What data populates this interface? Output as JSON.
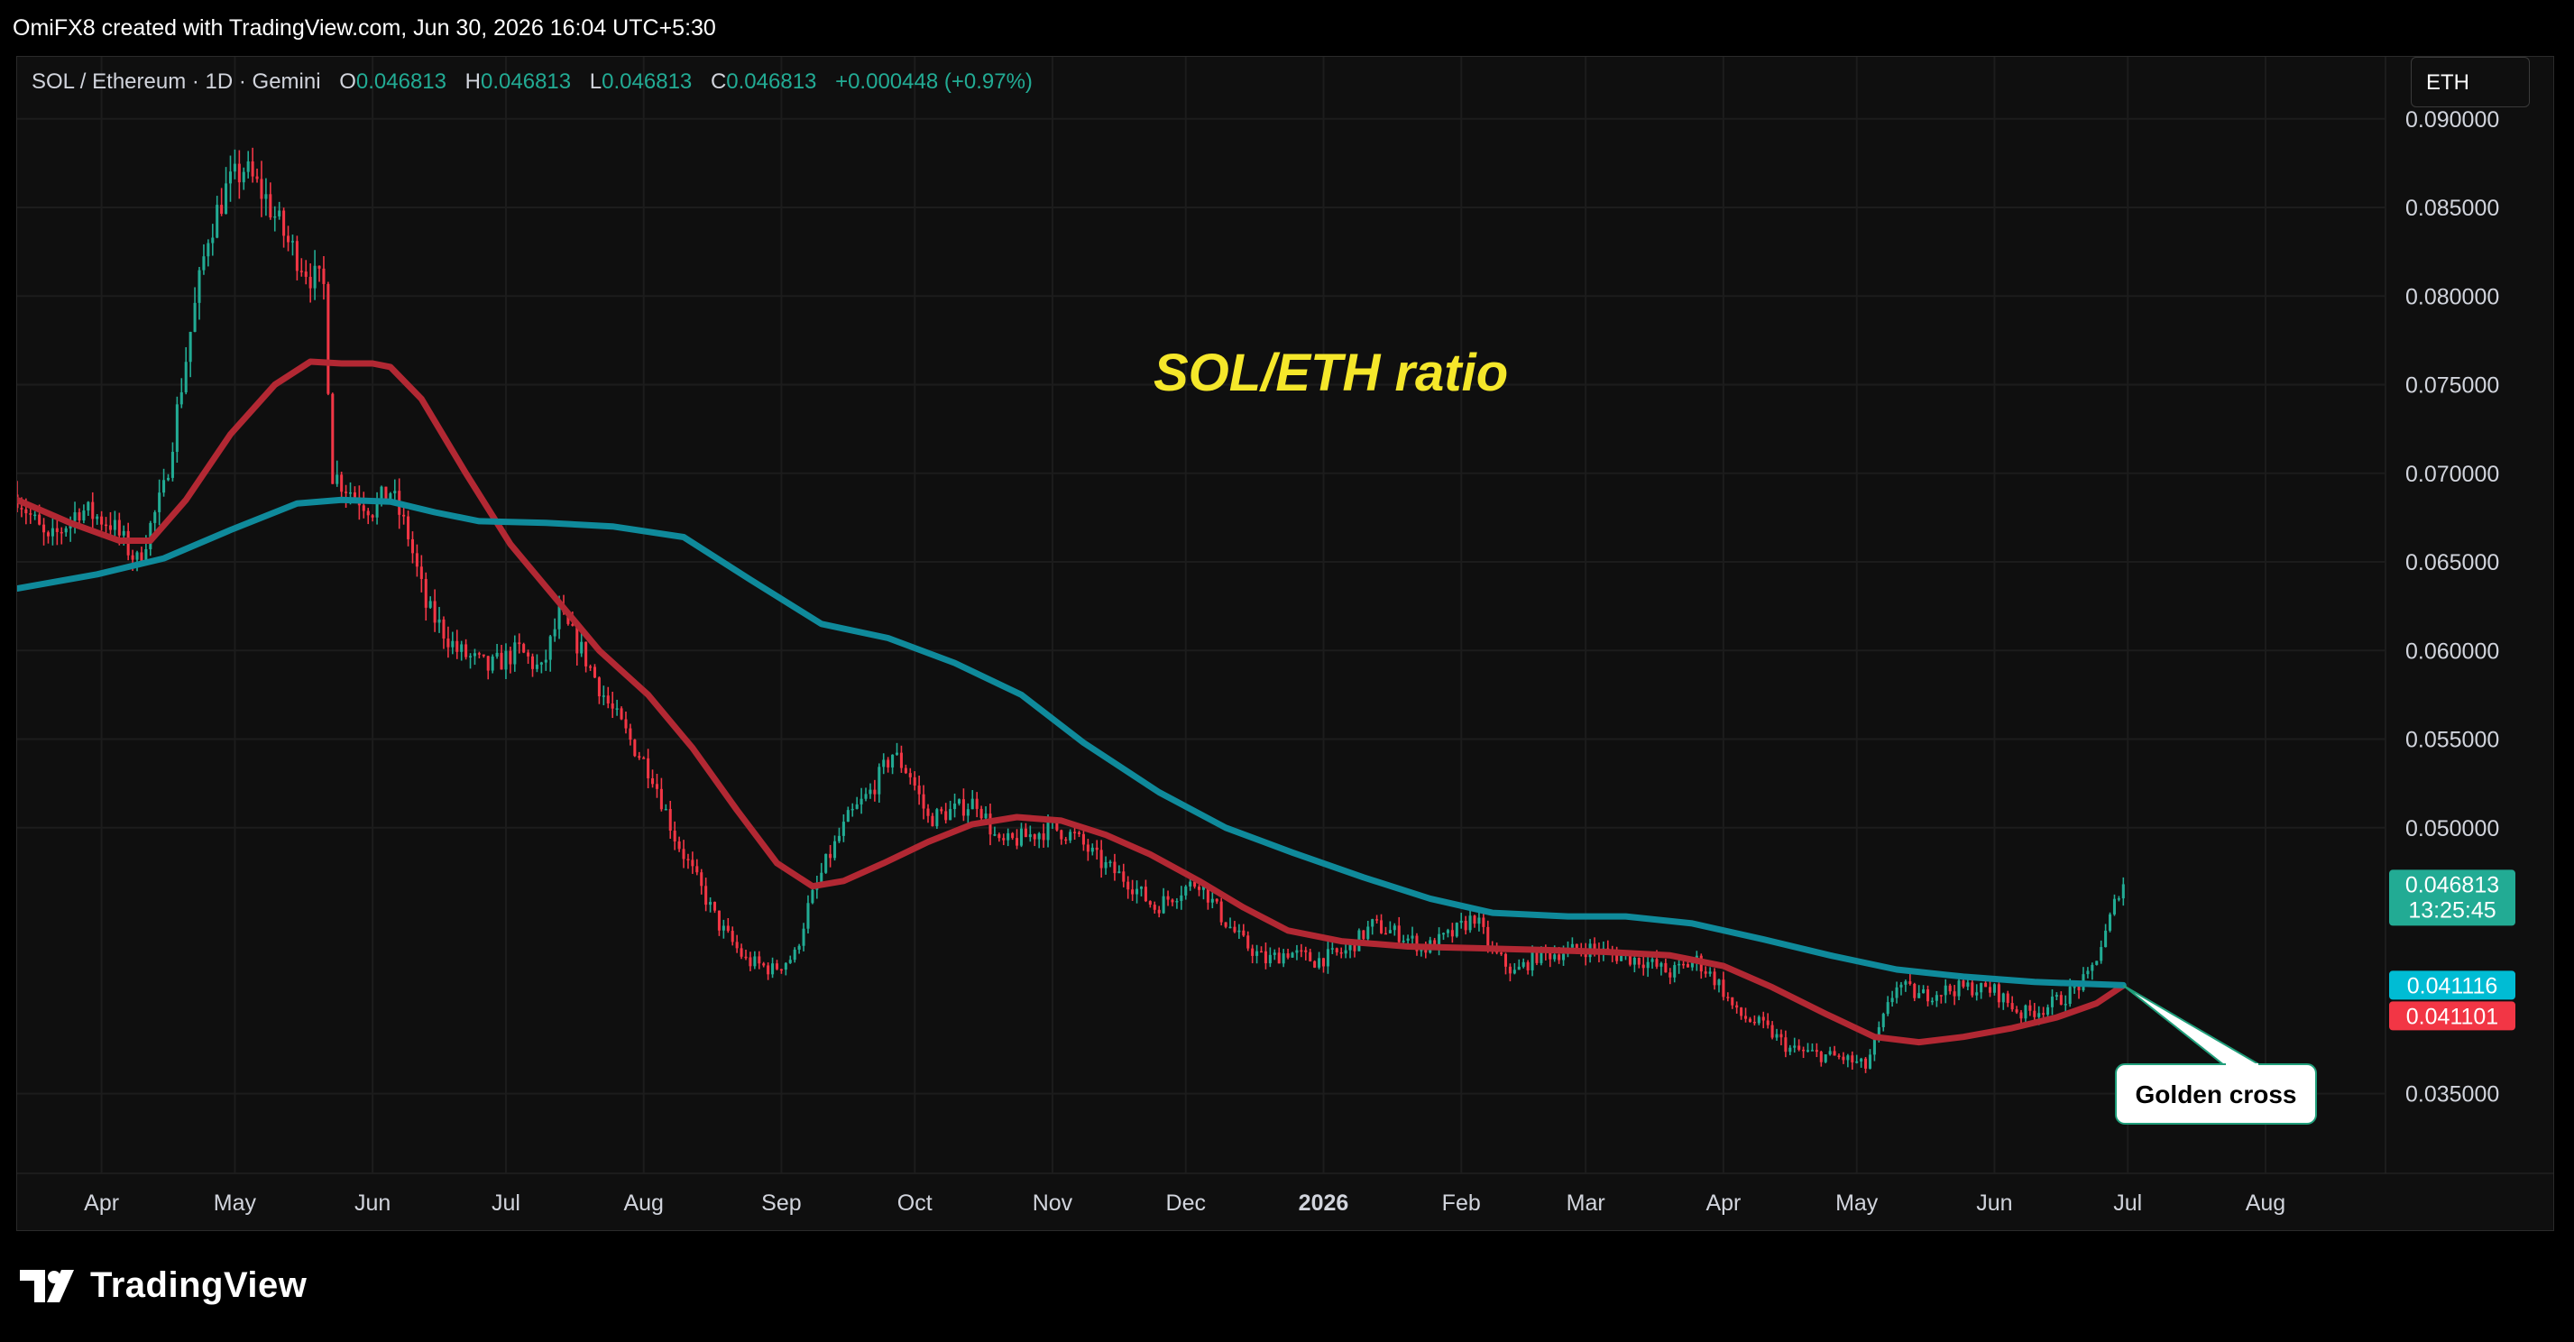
{
  "header": {
    "credit": "OmiFX8 created with TradingView.com, Jun 30, 2026 16:04 UTC+5:30"
  },
  "legend": {
    "symbol": "SOL / Ethereum · 1D · Gemini",
    "open_label": "O",
    "open": "0.046813",
    "high_label": "H",
    "high": "0.046813",
    "low_label": "L",
    "low": "0.046813",
    "close_label": "C",
    "close": "0.046813",
    "change": "+0.000448 (+0.97%)"
  },
  "currency_button": "ETH",
  "footer": {
    "brand": "TradingView"
  },
  "colors": {
    "up": "#22ab94",
    "down": "#f23645",
    "sma_fast": "#b22833",
    "sma_slow": "#0f8a9b",
    "title": "#f5e72a",
    "grid": "#1c1c1c",
    "background": "#0f0f0f"
  },
  "chart_data": {
    "type": "candlestick",
    "title": "SOL/ETH ratio",
    "ylim": [
      0.0305,
      0.0935
    ],
    "y_ticks": [
      "0.090000",
      "0.085000",
      "0.080000",
      "0.075000",
      "0.070000",
      "0.065000",
      "0.060000",
      "0.055000",
      "0.050000",
      "0.035000"
    ],
    "x_ticks": [
      {
        "label": "Apr",
        "date": "2025-04-01"
      },
      {
        "label": "May",
        "date": "2025-05-01"
      },
      {
        "label": "Jun",
        "date": "2025-06-01"
      },
      {
        "label": "Jul",
        "date": "2025-07-01"
      },
      {
        "label": "Aug",
        "date": "2025-08-01"
      },
      {
        "label": "Sep",
        "date": "2025-09-01"
      },
      {
        "label": "Oct",
        "date": "2025-10-01"
      },
      {
        "label": "Nov",
        "date": "2025-11-01"
      },
      {
        "label": "Dec",
        "date": "2025-12-01"
      },
      {
        "label": "2026",
        "date": "2026-01-01",
        "bold": true
      },
      {
        "label": "Feb",
        "date": "2026-02-01"
      },
      {
        "label": "Mar",
        "date": "2026-03-01"
      },
      {
        "label": "Apr",
        "date": "2026-04-01"
      },
      {
        "label": "May",
        "date": "2026-05-01"
      },
      {
        "label": "Jun",
        "date": "2026-06-01"
      },
      {
        "label": "Jul",
        "date": "2026-07-01"
      },
      {
        "label": "Aug",
        "date": "2026-08-01"
      }
    ],
    "x_range": [
      "2025-03-13",
      "2026-08-28"
    ],
    "price_path": [
      [
        "2025-03-13",
        0.0688
      ],
      [
        "2025-03-20",
        0.066
      ],
      [
        "2025-03-27",
        0.068
      ],
      [
        "2025-04-03",
        0.0672
      ],
      [
        "2025-04-09",
        0.065
      ],
      [
        "2025-04-15",
        0.069
      ],
      [
        "2025-04-21",
        0.078
      ],
      [
        "2025-04-25",
        0.0835
      ],
      [
        "2025-04-29",
        0.086
      ],
      [
        "2025-05-03",
        0.0872
      ],
      [
        "2025-05-08",
        0.0855
      ],
      [
        "2025-05-13",
        0.083
      ],
      [
        "2025-05-18",
        0.0812
      ],
      [
        "2025-05-21",
        0.0805
      ],
      [
        "2025-05-23",
        0.07
      ],
      [
        "2025-05-28",
        0.0688
      ],
      [
        "2025-06-01",
        0.068
      ],
      [
        "2025-06-05",
        0.069
      ],
      [
        "2025-06-09",
        0.0665
      ],
      [
        "2025-06-13",
        0.0625
      ],
      [
        "2025-06-20",
        0.06
      ],
      [
        "2025-06-27",
        0.059
      ],
      [
        "2025-07-04",
        0.06
      ],
      [
        "2025-07-09",
        0.0588
      ],
      [
        "2025-07-13",
        0.062
      ],
      [
        "2025-07-18",
        0.06
      ],
      [
        "2025-07-24",
        0.057
      ],
      [
        "2025-07-30",
        0.0545
      ],
      [
        "2025-08-03",
        0.053
      ],
      [
        "2025-08-08",
        0.0495
      ],
      [
        "2025-08-13",
        0.047
      ],
      [
        "2025-08-18",
        0.0445
      ],
      [
        "2025-08-24",
        0.0425
      ],
      [
        "2025-08-30",
        0.042
      ],
      [
        "2025-09-04",
        0.0428
      ],
      [
        "2025-09-07",
        0.0455
      ],
      [
        "2025-09-11",
        0.048
      ],
      [
        "2025-09-16",
        0.0505
      ],
      [
        "2025-09-21",
        0.052
      ],
      [
        "2025-09-26",
        0.0542
      ],
      [
        "2025-09-30",
        0.053
      ],
      [
        "2025-10-04",
        0.0505
      ],
      [
        "2025-10-10",
        0.051
      ],
      [
        "2025-10-15",
        0.0515
      ],
      [
        "2025-10-20",
        0.049
      ],
      [
        "2025-10-26",
        0.0495
      ],
      [
        "2025-11-01",
        0.05
      ],
      [
        "2025-11-06",
        0.0495
      ],
      [
        "2025-11-12",
        0.048
      ],
      [
        "2025-11-18",
        0.047
      ],
      [
        "2025-11-24",
        0.0455
      ],
      [
        "2025-11-30",
        0.0465
      ],
      [
        "2025-12-04",
        0.047
      ],
      [
        "2025-12-09",
        0.045
      ],
      [
        "2025-12-14",
        0.0435
      ],
      [
        "2025-12-19",
        0.0425
      ],
      [
        "2025-12-24",
        0.043
      ],
      [
        "2025-12-30",
        0.0425
      ],
      [
        "2026-01-06",
        0.043
      ],
      [
        "2026-01-12",
        0.0445
      ],
      [
        "2026-01-18",
        0.044
      ],
      [
        "2026-01-24",
        0.0432
      ],
      [
        "2026-01-30",
        0.044
      ],
      [
        "2026-02-04",
        0.045
      ],
      [
        "2026-02-08",
        0.043
      ],
      [
        "2026-02-13",
        0.0418
      ],
      [
        "2026-02-18",
        0.0428
      ],
      [
        "2026-02-24",
        0.043
      ],
      [
        "2026-03-02",
        0.0432
      ],
      [
        "2026-03-08",
        0.0428
      ],
      [
        "2026-03-14",
        0.0425
      ],
      [
        "2026-03-20",
        0.0418
      ],
      [
        "2026-03-26",
        0.0425
      ],
      [
        "2026-03-31",
        0.0412
      ],
      [
        "2026-04-04",
        0.0395
      ],
      [
        "2026-04-10",
        0.0388
      ],
      [
        "2026-04-16",
        0.0375
      ],
      [
        "2026-04-22",
        0.0372
      ],
      [
        "2026-04-28",
        0.037
      ],
      [
        "2026-05-03",
        0.0365
      ],
      [
        "2026-05-06",
        0.0385
      ],
      [
        "2026-05-10",
        0.0412
      ],
      [
        "2026-05-15",
        0.0405
      ],
      [
        "2026-05-20",
        0.0408
      ],
      [
        "2026-05-26",
        0.041
      ],
      [
        "2026-06-01",
        0.0408
      ],
      [
        "2026-06-07",
        0.0395
      ],
      [
        "2026-06-12",
        0.0398
      ],
      [
        "2026-06-17",
        0.0405
      ],
      [
        "2026-06-22",
        0.0415
      ],
      [
        "2026-06-26",
        0.044
      ],
      [
        "2026-06-29",
        0.0465
      ],
      [
        "2026-06-30",
        0.046813
      ]
    ],
    "series": [
      {
        "kind": "line",
        "color": "#b22833",
        "points": [
          [
            "2025-03-13",
            0.0685
          ],
          [
            "2025-03-25",
            0.0672
          ],
          [
            "2025-04-05",
            0.0662
          ],
          [
            "2025-04-12",
            0.0662
          ],
          [
            "2025-04-20",
            0.0685
          ],
          [
            "2025-04-30",
            0.0722
          ],
          [
            "2025-05-10",
            0.075
          ],
          [
            "2025-05-18",
            0.0763
          ],
          [
            "2025-05-25",
            0.0762
          ],
          [
            "2025-06-01",
            0.0762
          ],
          [
            "2025-06-05",
            0.076
          ],
          [
            "2025-06-12",
            0.0742
          ],
          [
            "2025-06-22",
            0.07
          ],
          [
            "2025-07-02",
            0.066
          ],
          [
            "2025-07-12",
            0.063
          ],
          [
            "2025-07-22",
            0.06
          ],
          [
            "2025-08-02",
            0.0575
          ],
          [
            "2025-08-12",
            0.0545
          ],
          [
            "2025-08-22",
            0.051
          ],
          [
            "2025-08-31",
            0.048
          ],
          [
            "2025-09-08",
            0.0467
          ],
          [
            "2025-09-15",
            0.047
          ],
          [
            "2025-09-24",
            0.048
          ],
          [
            "2025-10-04",
            0.0492
          ],
          [
            "2025-10-14",
            0.0502
          ],
          [
            "2025-10-24",
            0.0506
          ],
          [
            "2025-11-03",
            0.0504
          ],
          [
            "2025-11-13",
            0.0496
          ],
          [
            "2025-11-23",
            0.0485
          ],
          [
            "2025-12-04",
            0.047
          ],
          [
            "2025-12-14",
            0.0455
          ],
          [
            "2025-12-24",
            0.0442
          ],
          [
            "2026-01-05",
            0.0436
          ],
          [
            "2026-01-20",
            0.0433
          ],
          [
            "2026-02-05",
            0.0432
          ],
          [
            "2026-02-20",
            0.0431
          ],
          [
            "2026-03-05",
            0.043
          ],
          [
            "2026-03-20",
            0.0428
          ],
          [
            "2026-04-01",
            0.0422
          ],
          [
            "2026-04-12",
            0.041
          ],
          [
            "2026-04-24",
            0.0395
          ],
          [
            "2026-05-05",
            0.0382
          ],
          [
            "2026-05-15",
            0.0379
          ],
          [
            "2026-05-25",
            0.0382
          ],
          [
            "2026-06-05",
            0.0387
          ],
          [
            "2026-06-15",
            0.0393
          ],
          [
            "2026-06-24",
            0.0401
          ],
          [
            "2026-06-30",
            0.041101
          ]
        ]
      },
      {
        "kind": "line",
        "color": "#0f8a9b",
        "points": [
          [
            "2025-03-13",
            0.0635
          ],
          [
            "2025-03-31",
            0.0643
          ],
          [
            "2025-04-15",
            0.0652
          ],
          [
            "2025-04-30",
            0.0668
          ],
          [
            "2025-05-15",
            0.0683
          ],
          [
            "2025-05-25",
            0.0685
          ],
          [
            "2025-06-05",
            0.0684
          ],
          [
            "2025-06-15",
            0.0678
          ],
          [
            "2025-06-25",
            0.0673
          ],
          [
            "2025-07-10",
            0.0672
          ],
          [
            "2025-07-25",
            0.067
          ],
          [
            "2025-08-10",
            0.0664
          ],
          [
            "2025-08-25",
            0.064
          ],
          [
            "2025-09-10",
            0.0615
          ],
          [
            "2025-09-25",
            0.0607
          ],
          [
            "2025-10-10",
            0.0593
          ],
          [
            "2025-10-25",
            0.0575
          ],
          [
            "2025-11-08",
            0.0548
          ],
          [
            "2025-11-25",
            0.052
          ],
          [
            "2025-12-10",
            0.05
          ],
          [
            "2025-12-25",
            0.0486
          ],
          [
            "2026-01-10",
            0.0472
          ],
          [
            "2026-01-25",
            0.046
          ],
          [
            "2026-02-08",
            0.0452
          ],
          [
            "2026-02-25",
            0.045
          ],
          [
            "2026-03-10",
            0.045
          ],
          [
            "2026-03-25",
            0.0446
          ],
          [
            "2026-04-10",
            0.0437
          ],
          [
            "2026-04-25",
            0.0428
          ],
          [
            "2026-05-10",
            0.042
          ],
          [
            "2026-05-25",
            0.0416
          ],
          [
            "2026-06-10",
            0.0413
          ],
          [
            "2026-06-30",
            0.041116
          ]
        ]
      }
    ],
    "price_labels": [
      {
        "value": 0.046813,
        "text": "0.046813",
        "subtext": "13:25:45",
        "color": "#22ab94"
      },
      {
        "value": 0.041116,
        "text": "0.041116",
        "color": "#00bcd4"
      },
      {
        "value": 0.041101,
        "text": "0.041101",
        "color": "#f23645"
      }
    ],
    "annotation": {
      "text": "Golden cross",
      "date": "2026-06-30",
      "value": 0.0411
    }
  }
}
